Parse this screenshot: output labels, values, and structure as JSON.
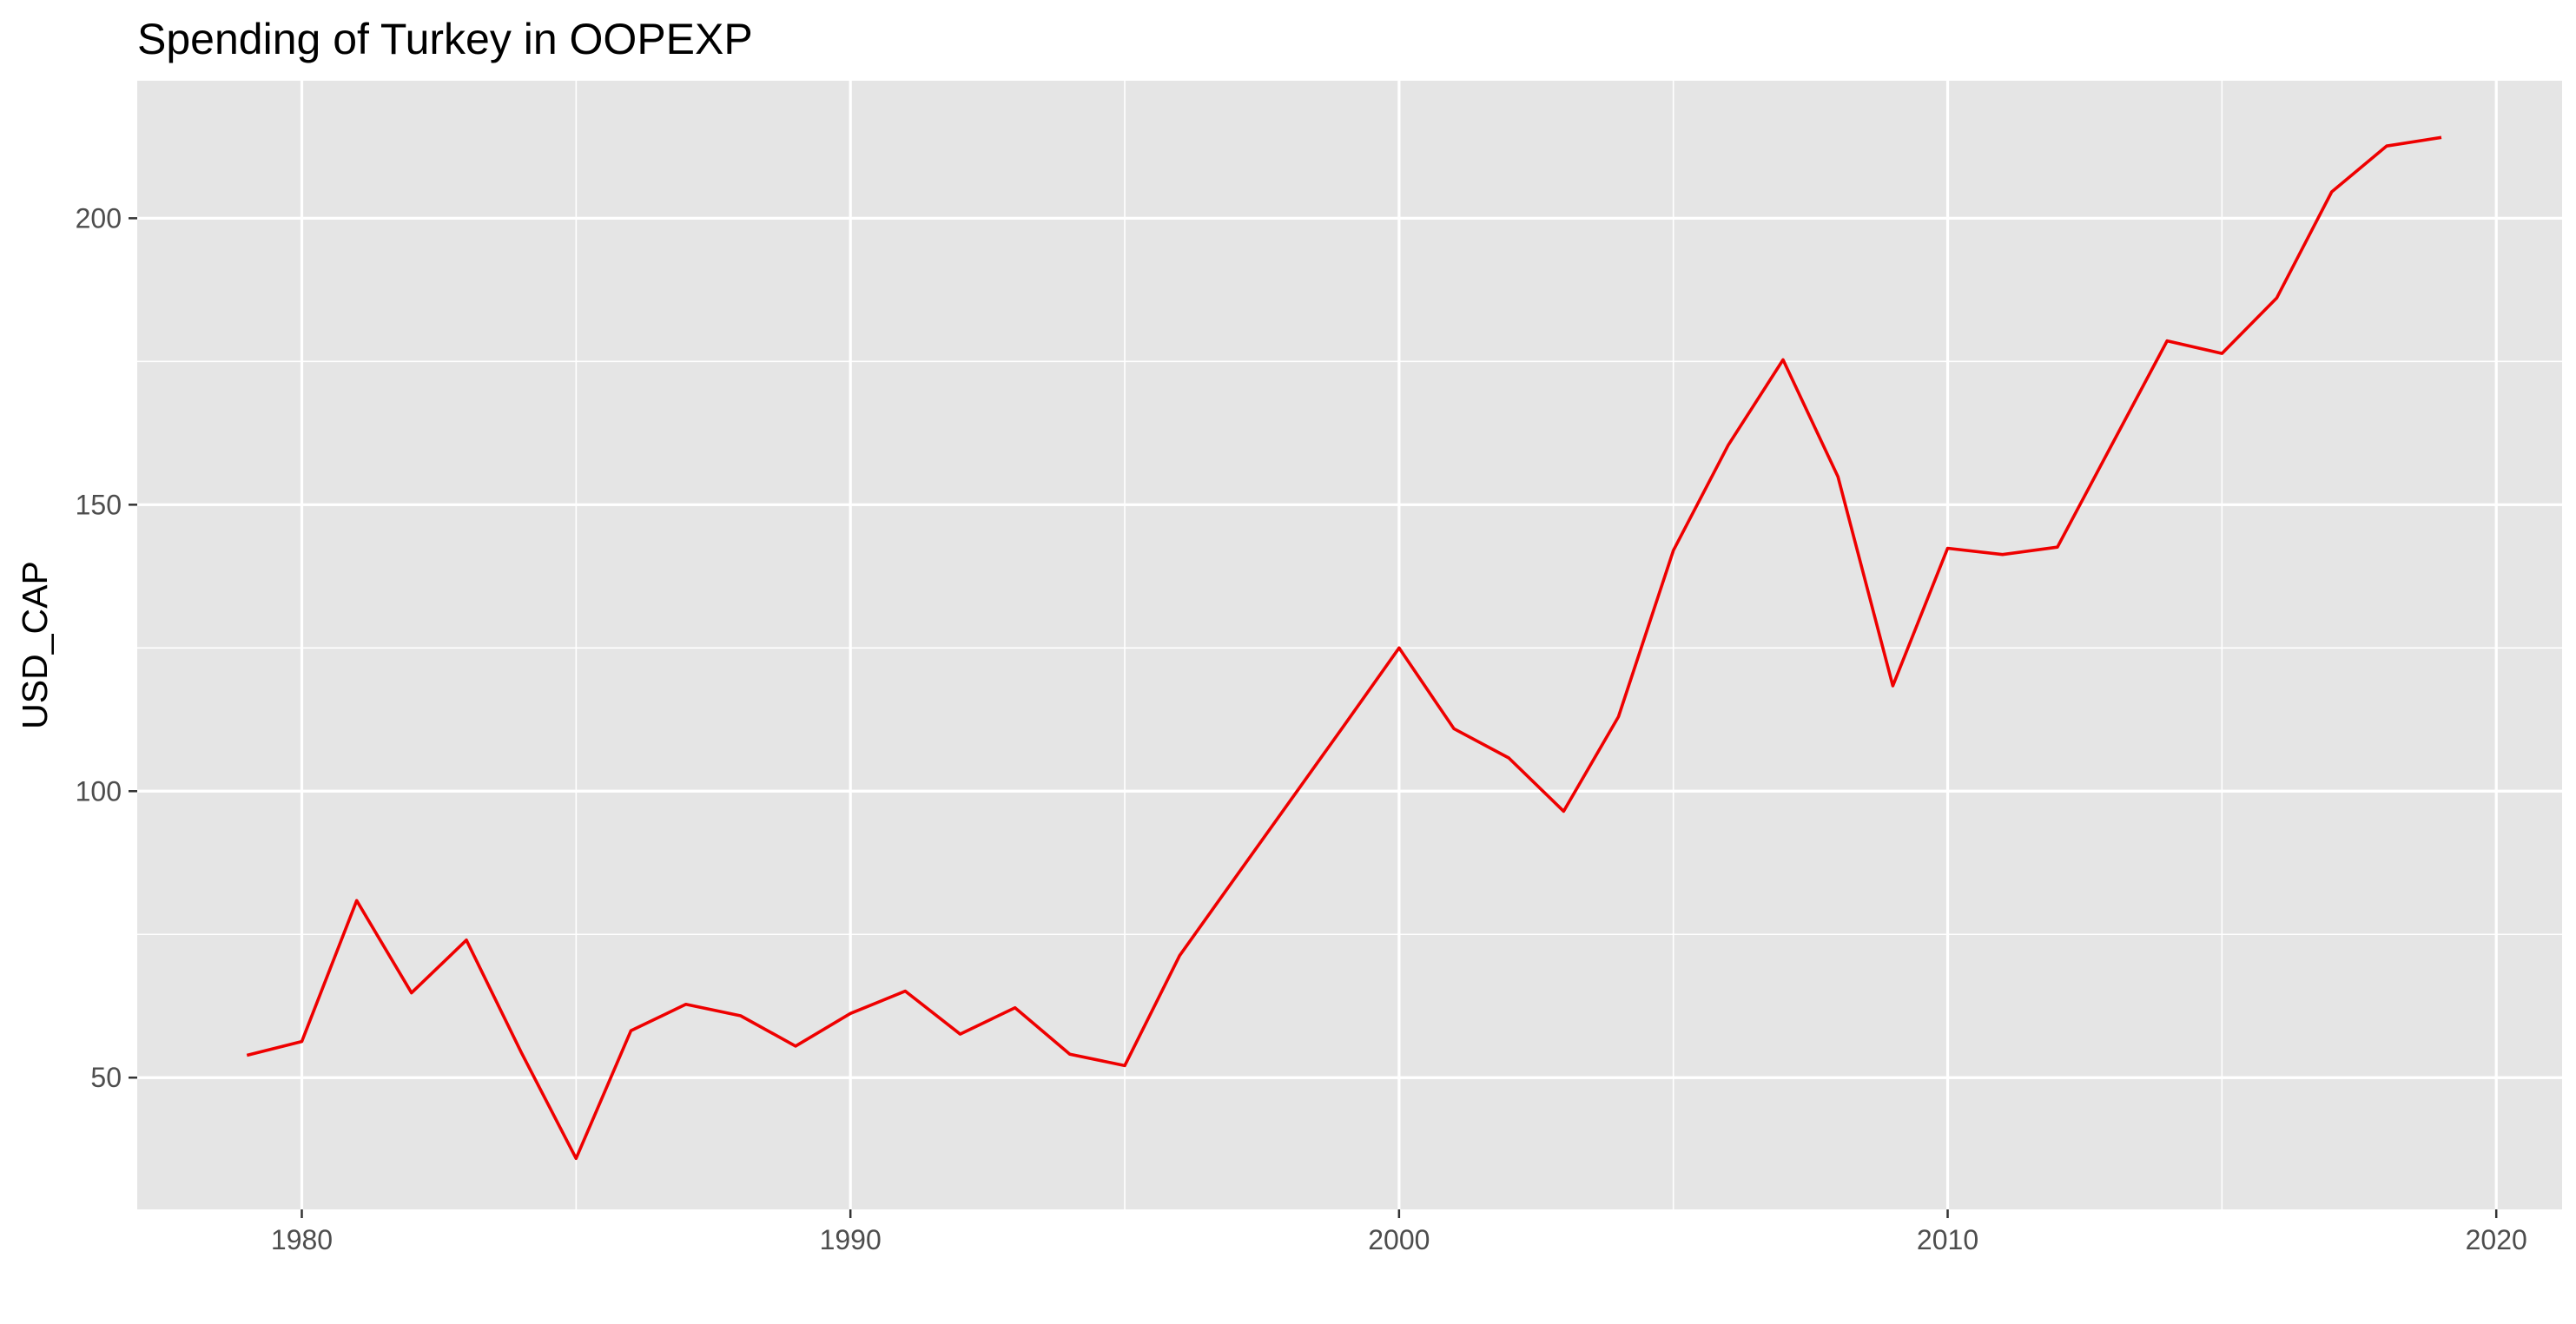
{
  "chart_data": {
    "type": "line",
    "title": "Spending of Turkey in OOPEXP",
    "xlabel": "",
    "ylabel": "USD_CAP",
    "xlim": [
      1977,
      2021.2
    ],
    "ylim": [
      27,
      224
    ],
    "x_ticks": [
      1980,
      1990,
      2000,
      2010,
      2020
    ],
    "x_minor_ticks": [
      1975,
      1985,
      1995,
      2005,
      2015
    ],
    "y_ticks": [
      50,
      100,
      150,
      200
    ],
    "y_minor_ticks": [
      75,
      125,
      175
    ],
    "grid": true,
    "legend": "none",
    "series": [
      {
        "color": "#ee0000",
        "x": [
          1979,
          1980,
          1981,
          1982,
          1983,
          1984,
          1985,
          1986,
          1987,
          1988,
          1989,
          1990,
          1991,
          1992,
          1993,
          1994,
          1995,
          1996,
          1997,
          1998,
          1999,
          2000,
          2001,
          2002,
          2003,
          2004,
          2005,
          2006,
          2007,
          2008,
          2009,
          2010,
          2011,
          2012,
          2013,
          2014,
          2015,
          2016,
          2017,
          2018,
          2019
        ],
        "y": [
          53.9,
          56.3,
          80.9,
          64.8,
          74.0,
          54.4,
          35.9,
          58.2,
          62.8,
          60.8,
          55.5,
          61.2,
          65.1,
          57.6,
          62.2,
          54.1,
          52.1,
          71.3,
          84.7,
          98.1,
          111.5,
          125.0,
          110.9,
          105.8,
          96.5,
          113.0,
          142.0,
          160.4,
          175.3,
          154.9,
          118.4,
          142.4,
          141.3,
          142.6,
          160.6,
          178.6,
          176.4,
          186.1,
          204.6,
          212.6,
          214.1
        ]
      }
    ],
    "colors": {
      "panel_background": "#e5e5e5",
      "grid_line": "#ffffff",
      "line": "#ee0000",
      "tick_label": "#4d4d4d",
      "tick_mark": "#333333"
    }
  }
}
